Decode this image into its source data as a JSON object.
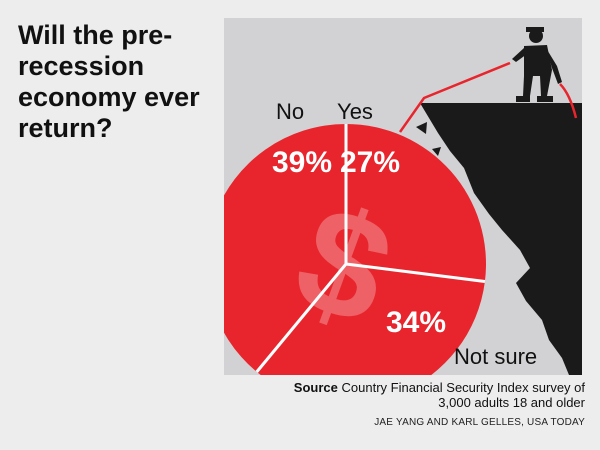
{
  "title": "Will the pre-recession economy ever return?",
  "chart_data": {
    "type": "pie",
    "categories": [
      "No",
      "Yes",
      "Not sure"
    ],
    "values": [
      39,
      27,
      34
    ],
    "value_labels": [
      "39%",
      "27%",
      "34%"
    ],
    "colors": {
      "slice": "#e8252d",
      "divider": "#ffffff",
      "background": "#d2d2d4",
      "cliff": "#1a1a1a",
      "rope": "#e8252d"
    },
    "legend": "none",
    "decoration": "dollar-sign"
  },
  "source": {
    "label": "Source",
    "text": "Country Financial Security Index survey of 3,000 adults 18 and older"
  },
  "credit": "JAE YANG AND KARL GELLES, USA TODAY"
}
